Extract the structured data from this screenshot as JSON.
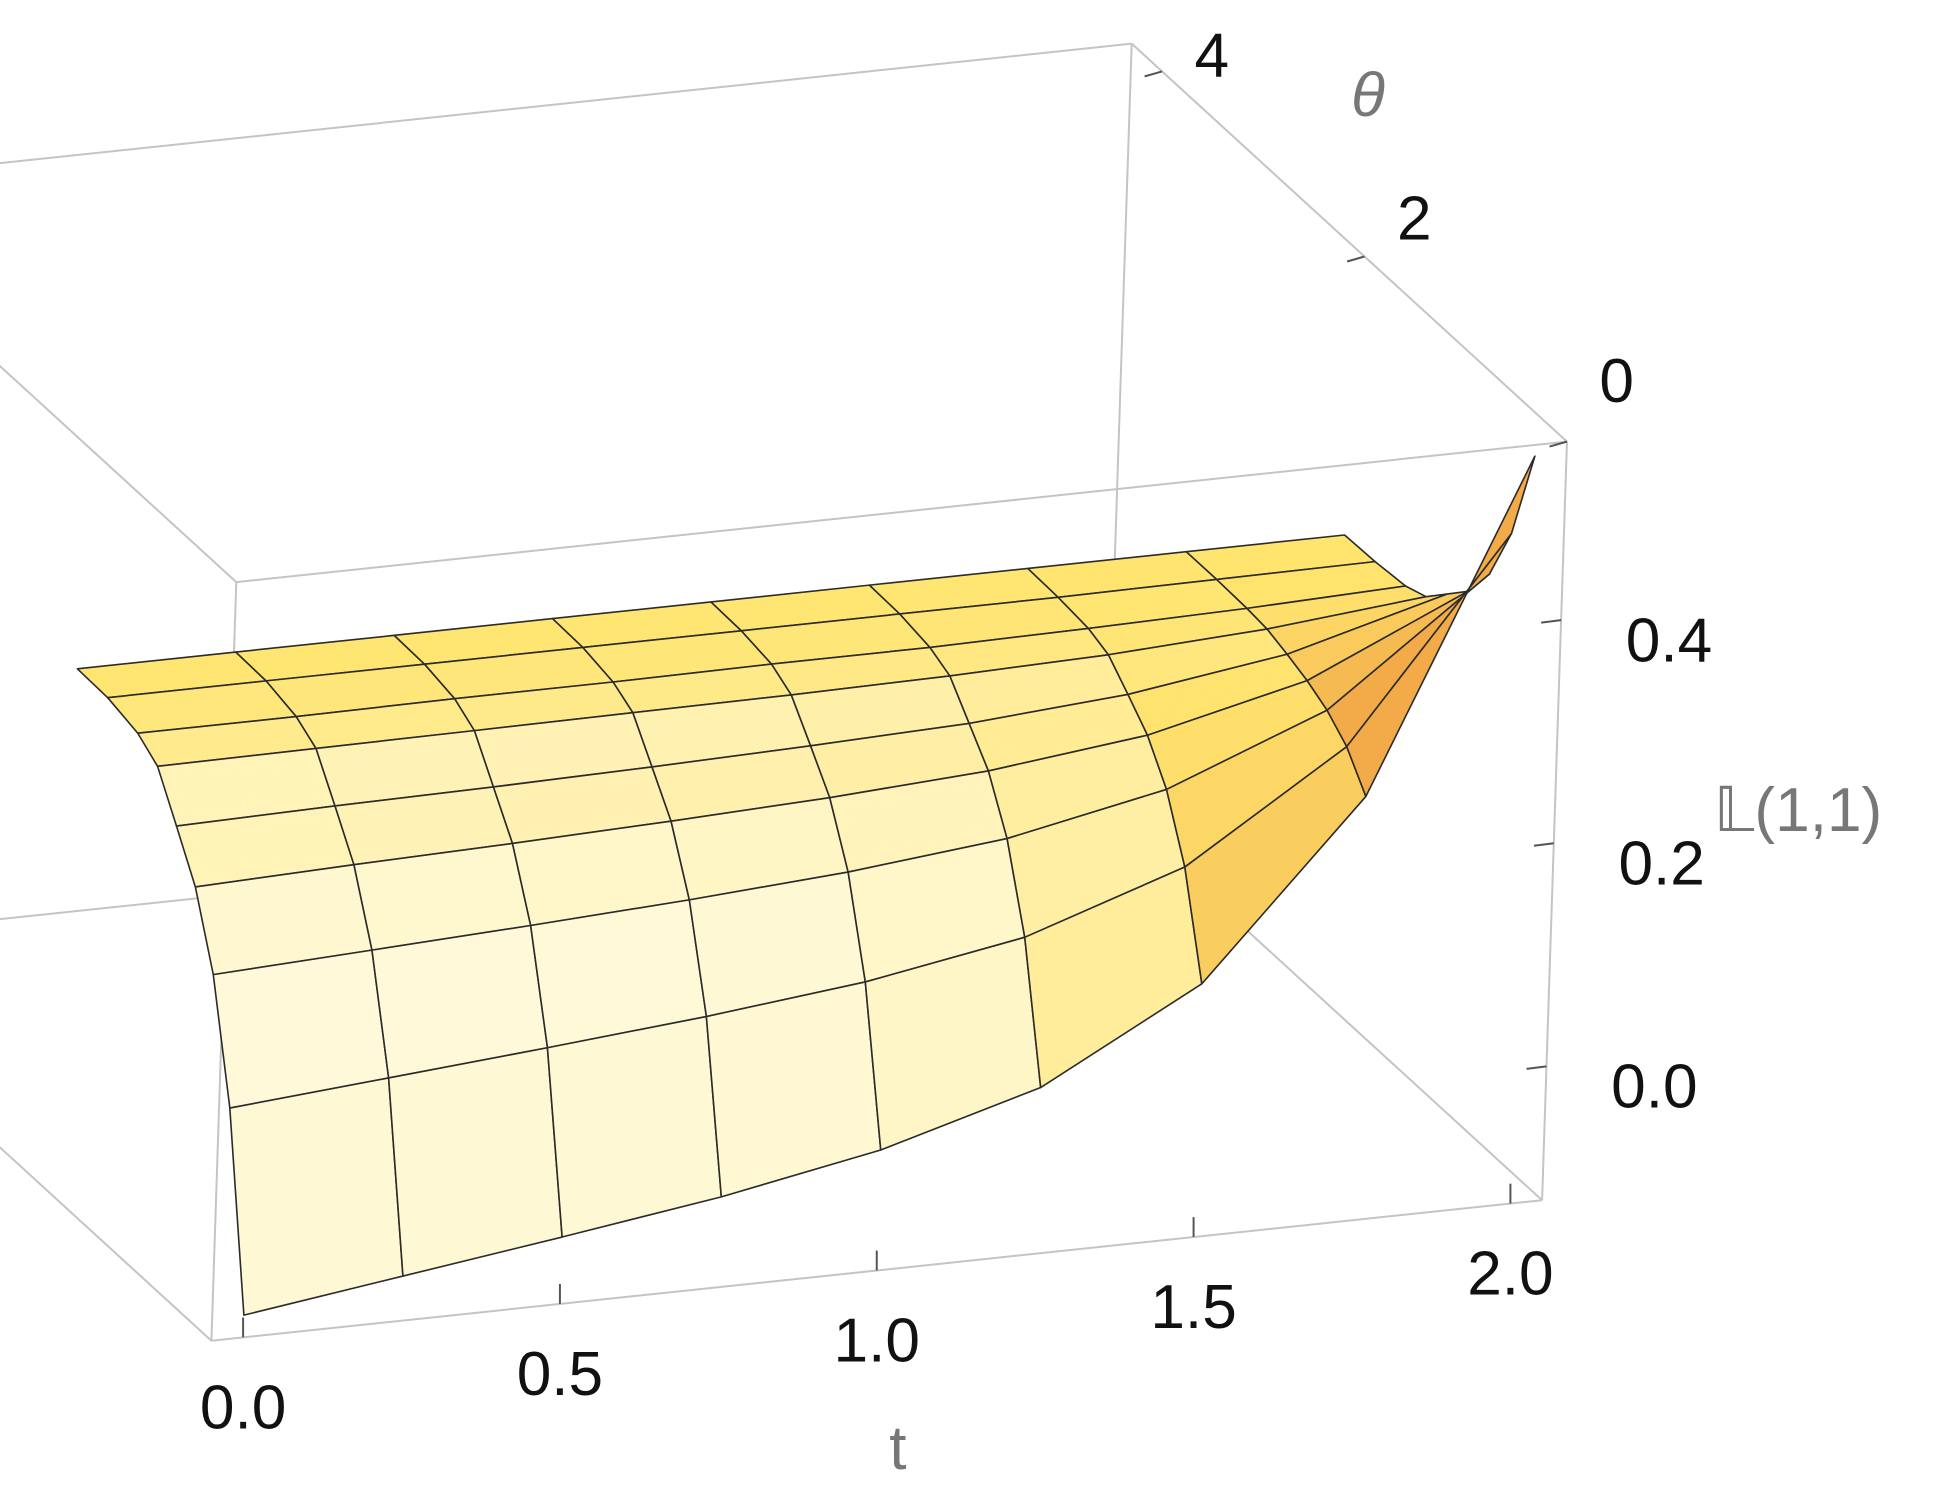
{
  "chart_data": {
    "type": "surface",
    "x_label": "t",
    "y_label": "θ",
    "z_label": "𝕃(1,1)",
    "color": "#ffe46e",
    "x": [
      0,
      0.25,
      0.5,
      0.75,
      1,
      1.25,
      1.5,
      1.75,
      2
    ],
    "y": [
      0,
      0.2,
      0.4,
      0.6,
      0.8,
      1.0,
      1.2,
      1.5,
      1.8
    ],
    "z": [
      [
        -0.1,
        -0.08,
        -0.06,
        -0.039,
        -0.012,
        0.029,
        0.107,
        0.26,
        0.55
      ],
      [
        0.069,
        0.081,
        0.093,
        0.106,
        0.122,
        0.147,
        0.195,
        0.288,
        0.464
      ],
      [
        0.172,
        0.179,
        0.186,
        0.194,
        0.204,
        0.219,
        0.248,
        0.304,
        0.411
      ],
      [
        0.234,
        0.239,
        0.243,
        0.248,
        0.254,
        0.263,
        0.28,
        0.314,
        0.379
      ],
      [
        0.272,
        0.275,
        0.277,
        0.28,
        0.284,
        0.289,
        0.3,
        0.321,
        0.36
      ],
      [
        0.309,
        0.31,
        0.311,
        0.312,
        0.313,
        0.315,
        0.319,
        0.327,
        0.341
      ],
      [
        0.322,
        0.322,
        0.323,
        0.323,
        0.324,
        0.324,
        0.326,
        0.329,
        0.334
      ],
      [
        0.329,
        0.329,
        0.329,
        0.329,
        0.329,
        0.329,
        0.329,
        0.33,
        0.331
      ],
      [
        0.33,
        0.33,
        0.33,
        0.33,
        0.33,
        0.33,
        0.33,
        0.33,
        0.33
      ]
    ],
    "xlim": [
      -0.05,
      2.05
    ],
    "ylim": [
      0,
      4.3
    ],
    "zlim": [
      -0.12,
      0.56
    ],
    "xticks": [
      {
        "value": 0,
        "label": "0.0"
      },
      0.5,
      {
        "value": 1,
        "label": "1.0"
      },
      1.5,
      {
        "value": 2,
        "label": "2.0"
      }
    ],
    "yticks": [
      0,
      2,
      4
    ],
    "zticks": [
      {
        "value": 0,
        "label": "0.0"
      },
      0.2,
      0.4
    ]
  }
}
